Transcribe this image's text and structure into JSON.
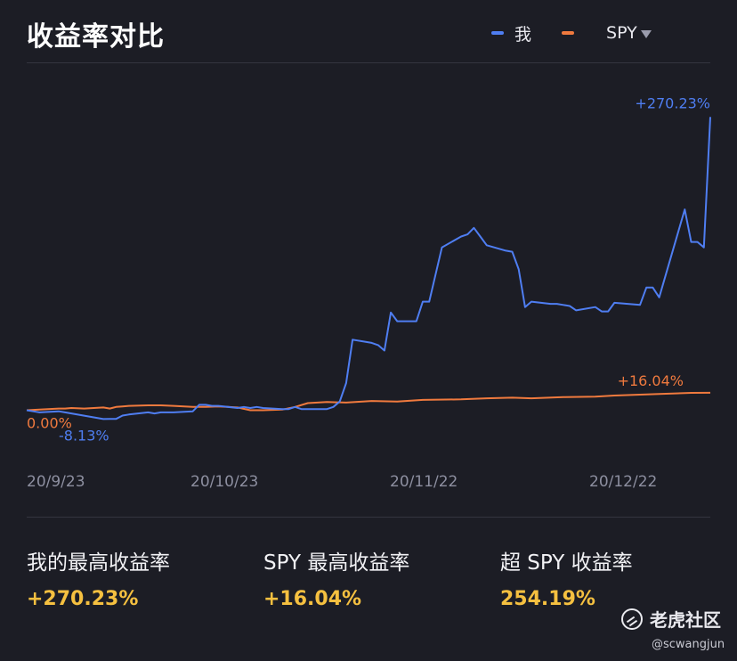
{
  "title": "收益率对比",
  "legend": {
    "series1": "我",
    "series2": "SPY"
  },
  "colors": {
    "me": "#4f7ef2",
    "spy": "#f07a3e",
    "highlight": "#f5c040"
  },
  "chart_data": {
    "type": "line",
    "x_ticks": [
      "20/9/23",
      "20/10/23",
      "20/11/22",
      "20/12/22"
    ],
    "x_range": [
      "2020-09-23",
      "2021-01-08"
    ],
    "ylim": [
      -30,
      300
    ],
    "grid": false,
    "legend_position": "top-right",
    "series": [
      {
        "name": "我",
        "color": "#4f7ef2",
        "points": [
          [
            "2020-09-23",
            0
          ],
          [
            "2020-09-24",
            -1
          ],
          [
            "2020-09-25",
            -2
          ],
          [
            "2020-09-28",
            -1
          ],
          [
            "2020-09-29",
            -2
          ],
          [
            "2020-09-30",
            -3
          ],
          [
            "2020-10-05",
            -8.13
          ],
          [
            "2020-10-06",
            -8
          ],
          [
            "2020-10-07",
            -8
          ],
          [
            "2020-10-08",
            -5
          ],
          [
            "2020-10-09",
            -4
          ],
          [
            "2020-10-12",
            -2
          ],
          [
            "2020-10-13",
            -3
          ],
          [
            "2020-10-14",
            -2
          ],
          [
            "2020-10-15",
            -2
          ],
          [
            "2020-10-16",
            -2
          ],
          [
            "2020-10-19",
            -1
          ],
          [
            "2020-10-20",
            5
          ],
          [
            "2020-10-21",
            5
          ],
          [
            "2020-10-22",
            4
          ],
          [
            "2020-10-23",
            4
          ],
          [
            "2020-10-26",
            2
          ],
          [
            "2020-10-27",
            3
          ],
          [
            "2020-10-28",
            2
          ],
          [
            "2020-10-29",
            3
          ],
          [
            "2020-10-30",
            2
          ],
          [
            "2020-11-02",
            1
          ],
          [
            "2020-11-03",
            1
          ],
          [
            "2020-11-04",
            3
          ],
          [
            "2020-11-05",
            1
          ],
          [
            "2020-11-06",
            1
          ],
          [
            "2020-11-09",
            1
          ],
          [
            "2020-11-10",
            3
          ],
          [
            "2020-11-11",
            8
          ],
          [
            "2020-11-12",
            25
          ],
          [
            "2020-11-13",
            65
          ],
          [
            "2020-11-16",
            62
          ],
          [
            "2020-11-17",
            60
          ],
          [
            "2020-11-18",
            55
          ],
          [
            "2020-11-19",
            90
          ],
          [
            "2020-11-20",
            82
          ],
          [
            "2020-11-23",
            82
          ],
          [
            "2020-11-24",
            100
          ],
          [
            "2020-11-25",
            100
          ],
          [
            "2020-11-27",
            150
          ],
          [
            "2020-11-30",
            160
          ],
          [
            "2020-12-01",
            162
          ],
          [
            "2020-12-02",
            168
          ],
          [
            "2020-12-03",
            160
          ],
          [
            "2020-12-04",
            152
          ],
          [
            "2020-12-07",
            147
          ],
          [
            "2020-12-08",
            146
          ],
          [
            "2020-12-09",
            130
          ],
          [
            "2020-12-10",
            95
          ],
          [
            "2020-12-11",
            100
          ],
          [
            "2020-12-14",
            98
          ],
          [
            "2020-12-15",
            98
          ],
          [
            "2020-12-16",
            97
          ],
          [
            "2020-12-17",
            96
          ],
          [
            "2020-12-18",
            92
          ],
          [
            "2020-12-21",
            95
          ],
          [
            "2020-12-22",
            91
          ],
          [
            "2020-12-23",
            91
          ],
          [
            "2020-12-24",
            99
          ],
          [
            "2020-12-28",
            97
          ],
          [
            "2020-12-29",
            113
          ],
          [
            "2020-12-30",
            113
          ],
          [
            "2020-12-31",
            104
          ],
          [
            "2021-01-04",
            185
          ],
          [
            "2021-01-05",
            155
          ],
          [
            "2021-01-06",
            155
          ],
          [
            "2021-01-07",
            150
          ],
          [
            "2021-01-08",
            270.23
          ]
        ]
      },
      {
        "name": "SPY",
        "color": "#f07a3e",
        "points": [
          [
            "2020-09-23",
            0
          ],
          [
            "2020-09-25",
            0.5
          ],
          [
            "2020-09-28",
            1.5
          ],
          [
            "2020-09-29",
            1.5
          ],
          [
            "2020-09-30",
            2
          ],
          [
            "2020-10-02",
            1.5
          ],
          [
            "2020-10-05",
            2.5
          ],
          [
            "2020-10-06",
            1.5
          ],
          [
            "2020-10-07",
            3
          ],
          [
            "2020-10-08",
            3.5
          ],
          [
            "2020-10-09",
            4
          ],
          [
            "2020-10-12",
            4.5
          ],
          [
            "2020-10-14",
            4.5
          ],
          [
            "2020-10-16",
            4
          ],
          [
            "2020-10-19",
            3
          ],
          [
            "2020-10-21",
            3
          ],
          [
            "2020-10-23",
            3.5
          ],
          [
            "2020-10-26",
            2.5
          ],
          [
            "2020-10-28",
            0
          ],
          [
            "2020-10-30",
            0
          ],
          [
            "2020-11-02",
            0.5
          ],
          [
            "2020-11-04",
            3
          ],
          [
            "2020-11-06",
            6.5
          ],
          [
            "2020-11-09",
            7.5
          ],
          [
            "2020-11-12",
            7
          ],
          [
            "2020-11-16",
            8.5
          ],
          [
            "2020-11-20",
            8
          ],
          [
            "2020-11-24",
            9.5
          ],
          [
            "2020-11-30",
            10
          ],
          [
            "2020-12-04",
            11
          ],
          [
            "2020-12-08",
            11.5
          ],
          [
            "2020-12-11",
            11
          ],
          [
            "2020-12-16",
            12
          ],
          [
            "2020-12-21",
            12.5
          ],
          [
            "2020-12-24",
            13.5
          ],
          [
            "2020-12-31",
            15
          ],
          [
            "2021-01-05",
            16
          ],
          [
            "2021-01-08",
            16.04
          ]
        ]
      }
    ],
    "annotations": {
      "me_end": "+270.23%",
      "spy_end": "+16.04%",
      "start": "0.00%",
      "me_min": "-8.13%"
    }
  },
  "stats": [
    {
      "label": "我的最高收益率",
      "value": "+270.23%"
    },
    {
      "label": "SPY 最高收益率",
      "value": "+16.04%"
    },
    {
      "label": "超 SPY 收益率",
      "value": "254.19%"
    }
  ],
  "watermark": {
    "brand": "老虎社区",
    "handle": "@scwangjun"
  }
}
